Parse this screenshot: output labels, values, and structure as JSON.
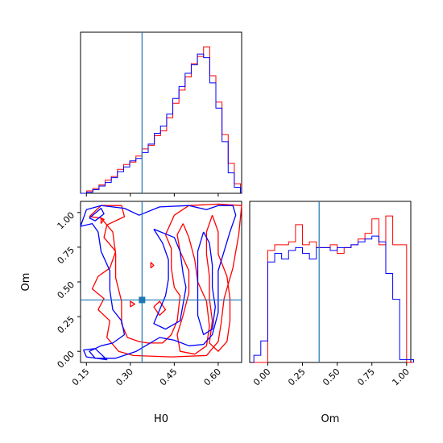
{
  "chart_data": {
    "type": "corner",
    "colors": {
      "series_a": "#ff0000",
      "series_b": "#0000ff",
      "truth": "#1f77b4"
    },
    "truth": {
      "H0": 0.34,
      "Om": 0.37
    },
    "panels": [
      {
        "id": "hist-H0",
        "type": "histogram",
        "xlim": [
          0.13,
          0.68
        ],
        "bin_edges": [
          0.13,
          0.151,
          0.172,
          0.193,
          0.214,
          0.235,
          0.256,
          0.277,
          0.298,
          0.319,
          0.34,
          0.361,
          0.382,
          0.403,
          0.424,
          0.445,
          0.466,
          0.487,
          0.508,
          0.529,
          0.55,
          0.571,
          0.592,
          0.613,
          0.634,
          0.655,
          0.676
        ],
        "series": [
          {
            "color": "#ff0000",
            "values": [
              0,
              2,
              4,
              7,
              11,
              14,
              20,
              24,
              26,
              31,
              37,
              40,
              48,
              52,
              63,
              75,
              86,
              97,
              108,
              114,
              122,
              98,
              76,
              49,
              25,
              8
            ]
          },
          {
            "color": "#0000ff",
            "values": [
              0,
              1,
              3,
              6,
              9,
              13,
              18,
              22,
              27,
              29,
              34,
              41,
              50,
              56,
              66,
              79,
              89,
              100,
              107,
              116,
              113,
              92,
              71,
              43,
              17,
              5
            ]
          }
        ]
      },
      {
        "id": "contour-H0-Om",
        "type": "contour",
        "xlabel": "H0",
        "ylabel": "Om",
        "xlim": [
          0.13,
          0.68
        ],
        "ylim": [
          -0.08,
          1.08
        ],
        "xticks": [
          "0.15",
          "0.30",
          "0.45",
          "0.60"
        ],
        "xtick_values": [
          0.15,
          0.3,
          0.45,
          0.6
        ],
        "yticks": [
          "0.00",
          "0.25",
          "0.50",
          "0.75",
          "1.00"
        ],
        "ytick_values": [
          0.0,
          0.25,
          0.5,
          0.75,
          1.0
        ],
        "contours": [
          {
            "color": "#ff0000",
            "points": [
              [
                0.16,
                0.97
              ],
              [
                0.2,
                1.05
              ],
              [
                0.27,
                1.05
              ],
              [
                0.28,
                0.97
              ],
              [
                0.22,
                0.91
              ],
              [
                0.21,
                0.82
              ],
              [
                0.25,
                0.72
              ],
              [
                0.23,
                0.6
              ],
              [
                0.19,
                0.54
              ],
              [
                0.17,
                0.45
              ],
              [
                0.21,
                0.38
              ],
              [
                0.19,
                0.3
              ],
              [
                0.23,
                0.22
              ],
              [
                0.22,
                0.1
              ],
              [
                0.26,
                0.0
              ],
              [
                0.31,
                -0.03
              ],
              [
                0.44,
                -0.04
              ],
              [
                0.56,
                -0.03
              ],
              [
                0.6,
                0.07
              ],
              [
                0.61,
                0.2
              ],
              [
                0.62,
                0.38
              ],
              [
                0.65,
                0.6
              ],
              [
                0.67,
                0.84
              ],
              [
                0.68,
                1.05
              ],
              [
                0.6,
                1.06
              ],
              [
                0.5,
                1.05
              ],
              [
                0.45,
                0.98
              ],
              [
                0.42,
                0.84
              ],
              [
                0.44,
                0.74
              ],
              [
                0.44,
                0.6
              ],
              [
                0.45,
                0.46
              ],
              [
                0.47,
                0.4
              ],
              [
                0.46,
                0.22
              ],
              [
                0.44,
                0.12
              ],
              [
                0.41,
                0.06
              ],
              [
                0.36,
                0.06
              ],
              [
                0.33,
                0.07
              ],
              [
                0.29,
                0.1
              ],
              [
                0.27,
                0.2
              ],
              [
                0.27,
                0.36
              ],
              [
                0.25,
                0.53
              ],
              [
                0.25,
                0.7
              ],
              [
                0.24,
                0.86
              ],
              [
                0.2,
                0.96
              ],
              [
                0.16,
                0.97
              ]
            ]
          },
          {
            "color": "#ff0000",
            "points": [
              [
                0.48,
                0.92
              ],
              [
                0.5,
                0.82
              ],
              [
                0.52,
                0.66
              ],
              [
                0.53,
                0.5
              ],
              [
                0.56,
                0.36
              ],
              [
                0.57,
                0.18
              ],
              [
                0.56,
                0.04
              ],
              [
                0.52,
                -0.02
              ],
              [
                0.47,
                0.0
              ],
              [
                0.46,
                0.12
              ],
              [
                0.48,
                0.26
              ],
              [
                0.5,
                0.42
              ],
              [
                0.5,
                0.58
              ],
              [
                0.47,
                0.72
              ],
              [
                0.46,
                0.84
              ],
              [
                0.48,
                0.92
              ]
            ]
          },
          {
            "color": "#ff0000",
            "points": [
              [
                0.58,
                0.98
              ],
              [
                0.6,
                0.86
              ],
              [
                0.6,
                0.7
              ],
              [
                0.63,
                0.54
              ],
              [
                0.64,
                0.38
              ],
              [
                0.64,
                0.22
              ],
              [
                0.63,
                0.07
              ],
              [
                0.6,
                0.0
              ],
              [
                0.57,
                0.06
              ],
              [
                0.58,
                0.22
              ],
              [
                0.57,
                0.38
              ],
              [
                0.57,
                0.54
              ],
              [
                0.56,
                0.7
              ],
              [
                0.56,
                0.86
              ],
              [
                0.58,
                0.98
              ]
            ]
          },
          {
            "color": "#ff0000",
            "points": [
              [
                0.38,
                0.32
              ],
              [
                0.4,
                0.26
              ],
              [
                0.42,
                0.3
              ],
              [
                0.4,
                0.36
              ],
              [
                0.38,
                0.32
              ]
            ]
          },
          {
            "color": "#ff0000",
            "points": [
              [
                0.3,
                0.32
              ],
              [
                0.315,
                0.34
              ],
              [
                0.3,
                0.36
              ],
              [
                0.3,
                0.32
              ]
            ]
          },
          {
            "color": "#ff0000",
            "points": [
              [
                0.2,
                0.92
              ],
              [
                0.21,
                0.95
              ],
              [
                0.2,
                0.96
              ],
              [
                0.2,
                0.92
              ]
            ]
          },
          {
            "color": "#ff0000",
            "points": [
              [
                0.37,
                0.6
              ],
              [
                0.38,
                0.62
              ],
              [
                0.37,
                0.64
              ],
              [
                0.37,
                0.6
              ]
            ]
          },
          {
            "color": "#0000ff",
            "points": [
              [
                0.13,
                0.9
              ],
              [
                0.15,
                1.02
              ],
              [
                0.2,
                1.05
              ],
              [
                0.28,
                1.03
              ],
              [
                0.33,
                0.98
              ],
              [
                0.4,
                1.04
              ],
              [
                0.5,
                1.05
              ],
              [
                0.56,
                1.02
              ],
              [
                0.6,
                1.05
              ],
              [
                0.65,
                1.05
              ],
              [
                0.66,
                0.98
              ],
              [
                0.64,
                0.86
              ],
              [
                0.62,
                0.72
              ],
              [
                0.6,
                0.58
              ],
              [
                0.6,
                0.44
              ],
              [
                0.6,
                0.28
              ],
              [
                0.58,
                0.12
              ],
              [
                0.55,
                0.05
              ],
              [
                0.5,
                0.04
              ],
              [
                0.45,
                0.08
              ],
              [
                0.4,
                0.1
              ],
              [
                0.32,
                0.0
              ],
              [
                0.25,
                -0.05
              ],
              [
                0.18,
                -0.05
              ],
              [
                0.16,
                0.0
              ],
              [
                0.2,
                0.04
              ],
              [
                0.24,
                0.06
              ],
              [
                0.28,
                0.12
              ],
              [
                0.27,
                0.22
              ],
              [
                0.24,
                0.3
              ],
              [
                0.23,
                0.44
              ],
              [
                0.23,
                0.58
              ],
              [
                0.2,
                0.72
              ],
              [
                0.19,
                0.86
              ],
              [
                0.17,
                0.92
              ],
              [
                0.13,
                0.9
              ]
            ]
          },
          {
            "color": "#0000ff",
            "points": [
              [
                0.16,
                0.96
              ],
              [
                0.18,
                0.94
              ],
              [
                0.21,
                0.99
              ],
              [
                0.2,
                1.03
              ],
              [
                0.16,
                0.96
              ]
            ]
          },
          {
            "color": "#0000ff",
            "points": [
              [
                0.38,
                0.88
              ],
              [
                0.45,
                0.82
              ],
              [
                0.47,
                0.72
              ],
              [
                0.48,
                0.56
              ],
              [
                0.49,
                0.46
              ],
              [
                0.48,
                0.34
              ],
              [
                0.47,
                0.22
              ],
              [
                0.42,
                0.16
              ],
              [
                0.38,
                0.2
              ],
              [
                0.4,
                0.3
              ],
              [
                0.42,
                0.4
              ],
              [
                0.43,
                0.52
              ],
              [
                0.43,
                0.66
              ],
              [
                0.41,
                0.78
              ],
              [
                0.38,
                0.88
              ]
            ]
          },
          {
            "color": "#0000ff",
            "points": [
              [
                0.55,
                0.86
              ],
              [
                0.57,
                0.78
              ],
              [
                0.58,
                0.62
              ],
              [
                0.58,
                0.46
              ],
              [
                0.59,
                0.32
              ],
              [
                0.58,
                0.16
              ],
              [
                0.55,
                0.12
              ],
              [
                0.53,
                0.26
              ],
              [
                0.53,
                0.42
              ],
              [
                0.53,
                0.58
              ],
              [
                0.53,
                0.72
              ],
              [
                0.55,
                0.86
              ]
            ]
          },
          {
            "color": "#0000ff",
            "points": [
              [
                0.14,
                0.01
              ],
              [
                0.15,
                -0.04
              ],
              [
                0.22,
                -0.06
              ],
              [
                0.18,
                0.02
              ],
              [
                0.14,
                0.01
              ]
            ]
          }
        ]
      },
      {
        "id": "hist-Om",
        "type": "histogram",
        "xlabel": "Om",
        "xlim": [
          -0.13,
          1.03
        ],
        "xticks": [
          "0.00",
          "0.25",
          "0.50",
          "0.75",
          "1.00"
        ],
        "xtick_values": [
          0.0,
          0.25,
          0.5,
          0.75,
          1.0
        ],
        "bin_edges": [
          -0.1,
          -0.05,
          0.0,
          0.05,
          0.1,
          0.15,
          0.2,
          0.25,
          0.3,
          0.35,
          0.4,
          0.45,
          0.5,
          0.55,
          0.6,
          0.65,
          0.7,
          0.75,
          0.8,
          0.85,
          0.9,
          0.95,
          1.0,
          1.05
        ],
        "series": [
          {
            "color": "#ff0000",
            "values": [
              0,
              0,
              78,
              82,
              82,
              84,
              96,
              82,
              84,
              80,
              80,
              82,
              76,
              80,
              82,
              86,
              90,
              100,
              82,
              102,
              82,
              82,
              0
            ]
          },
          {
            "color": "#0000ff",
            "values": [
              5,
              15,
              70,
              76,
              72,
              78,
              80,
              76,
              72,
              80,
              80,
              78,
              80,
              80,
              82,
              84,
              86,
              88,
              84,
              62,
              44,
              2,
              2
            ]
          }
        ]
      }
    ]
  }
}
